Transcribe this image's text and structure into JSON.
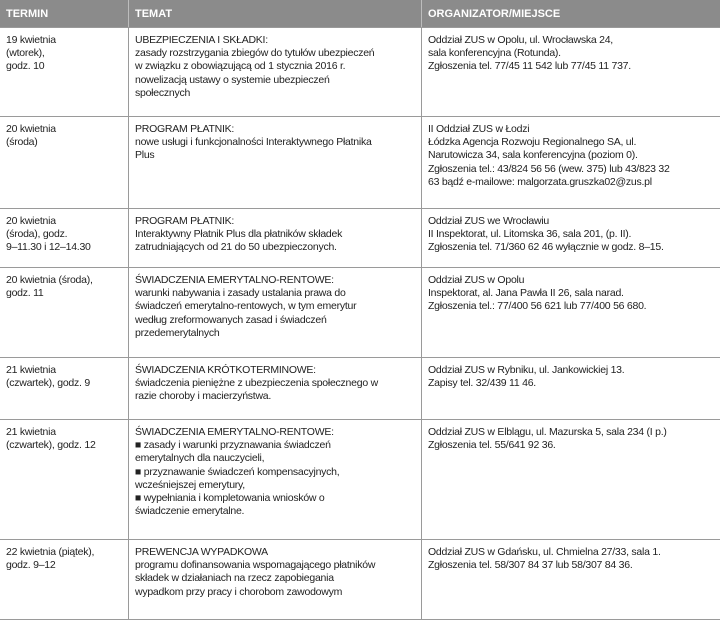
{
  "table": {
    "header": [
      "TERMIN",
      "TEMAT",
      "ORGANIZATOR/MIEJSCE"
    ],
    "rows": [
      {
        "termin": [
          "19 kwietnia",
          "(wtorek),",
          "godz. 10"
        ],
        "temat": {
          "title": "UBEZPIECZENIA I SKŁADKI:",
          "lines": [
            "zasady rozstrzygania zbiegów do tytułów ubezpieczeń",
            "w związku z obowiązującą od 1 stycznia 2016 r.",
            "nowelizacją ustawy o systemie ubezpieczeń",
            "społecznych"
          ]
        },
        "organizator": [
          "Oddział ZUS w Opolu, ul. Wrocławska 24,",
          "sala konferencyjna (Rotunda).",
          "Zgłoszenia tel. 77/45 11 542 lub 77/45 11 737."
        ]
      },
      {
        "termin": [
          "20 kwietnia",
          "(środa)"
        ],
        "temat": {
          "title": "PROGRAM PŁATNIK:",
          "lines": [
            "nowe usługi i funkcjonalności Interaktywnego Płatnika",
            "Plus"
          ]
        },
        "organizator": [
          "II Oddział ZUS w Łodzi",
          "Łódzka Agencja Rozwoju Regionalnego SA, ul.",
          "Narutowicza 34, sala konferencyjna (poziom 0).",
          "Zgłoszenia tel.: 43/824 56 56 (wew. 375) lub 43/823 32",
          "63 bądź e-mailowe: malgorzata.gruszka02@zus.pl"
        ]
      },
      {
        "termin": [
          "20 kwietnia",
          "(środa), godz.",
          "9–11.30 i 12–14.30"
        ],
        "temat": {
          "title": "PROGRAM PŁATNIK:",
          "lines": [
            "Interaktywny Płatnik Plus dla płatników składek",
            "zatrudniających od 21 do 50 ubezpieczonych."
          ]
        },
        "organizator": [
          "Oddział ZUS we Wrocławiu",
          "II Inspektorat, ul. Litomska 36, sala 201, (p. II).",
          "Zgłoszenia tel. 71/360 62 46 wyłącznie w godz. 8–15."
        ]
      },
      {
        "termin": [
          "20 kwietnia (środa),",
          "godz. 11"
        ],
        "temat": {
          "title": "ŚWIADCZENIA EMERYTALNO-RENTOWE:",
          "lines": [
            "warunki nabywania i zasady ustalania prawa do",
            "świadczeń emerytalno-rentowych, w tym emerytur",
            "według zreformowanych zasad i świadczeń",
            "przedemerytalnych"
          ]
        },
        "organizator": [
          "Oddział ZUS w Opolu",
          "Inspektorat, al. Jana Pawła II 26, sala narad.",
          "Zgłoszenia tel.: 77/400 56 621 lub 77/400 56 680."
        ]
      },
      {
        "termin": [
          "21 kwietnia",
          "(czwartek), godz. 9"
        ],
        "temat": {
          "title": "ŚWIADCZENIA KRÓTKOTERMINOWE:",
          "lines": [
            "świadczenia pieniężne z ubezpieczenia społecznego w",
            "razie choroby i macierzyństwa."
          ]
        },
        "organizator": [
          "Oddział ZUS w Rybniku, ul. Jankowickiej 13.",
          "Zapisy tel. 32/439 11 46."
        ]
      },
      {
        "termin": [
          "21 kwietnia",
          "(czwartek), godz. 12"
        ],
        "temat": {
          "title": "ŚWIADCZENIA EMERYTALNO-RENTOWE:",
          "lines": [
            "■ zasady i warunki przyznawania świadczeń",
            "emerytalnych dla nauczycieli,",
            "■ przyznawanie świadczeń kompensacyjnych,",
            "wcześniejszej emerytury,",
            "■ wypełniania i kompletowania wniosków o",
            "świadczenie emerytalne."
          ]
        },
        "organizator": [
          "Oddział ZUS w Elblągu, ul. Mazurska 5, sala 234 (I p.)",
          "Zgłoszenia tel. 55/641 92 36."
        ]
      },
      {
        "termin": [
          "22 kwietnia (piątek),",
          "godz. 9–12"
        ],
        "temat": {
          "title": "PREWENCJA WYPADKOWA",
          "lines": [
            "programu dofinansowania wspomagającego płatników",
            "składek w działaniach na rzecz zapobiegania",
            "wypadkom przy pracy i chorobom zawodowym"
          ]
        },
        "organizator": [
          "Oddział ZUS w Gdańsku, ul. Chmielna 27/33, sala 1.",
          "Zgłoszenia tel. 58/307 84 37 lub 58/307 84 36."
        ]
      }
    ]
  }
}
